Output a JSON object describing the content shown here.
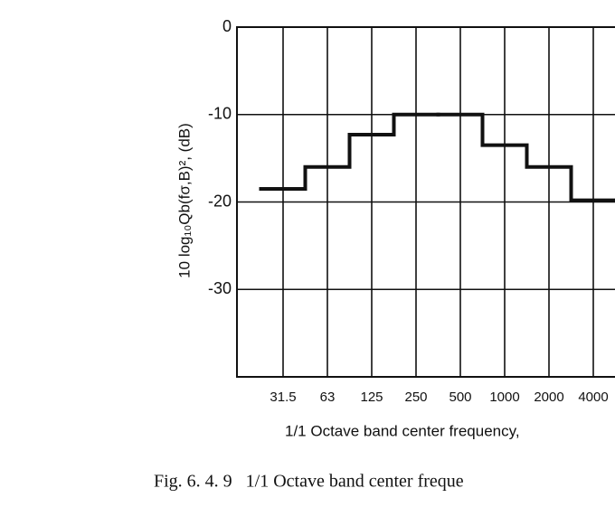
{
  "chart_data": {
    "type": "step",
    "y_label": "10 log₁₀Qb(fσ,B)², (dB)",
    "x_label": "1/1 Octave band center frequency,",
    "caption": "Fig. 6. 4. 9   1/1 Octave band center freque",
    "categories": [
      "31.5",
      "63",
      "125",
      "250",
      "500",
      "1000",
      "2000",
      "4000"
    ],
    "values": [
      -18.5,
      -16,
      -12.3,
      -10,
      -10,
      -13.5,
      -16,
      -19.8
    ],
    "color": "#111111",
    "ylim": [
      -40,
      0
    ],
    "yticks": [
      0,
      -10,
      -20,
      -30
    ],
    "grid": true
  }
}
